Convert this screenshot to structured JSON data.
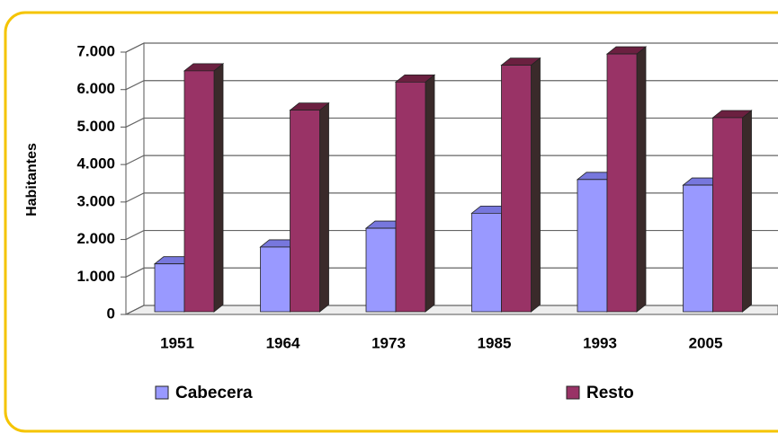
{
  "chart_data": {
    "type": "bar3d",
    "y_label": "Habitantes",
    "categories": [
      "1951",
      "1964",
      "1973",
      "1985",
      "1993",
      "2005"
    ],
    "series": [
      {
        "name": "Cabecera",
        "color": "#9999ff",
        "values": [
          1350,
          1800,
          2300,
          2700,
          3600,
          3450
        ]
      },
      {
        "name": "Resto",
        "color": "#993366",
        "values": [
          6500,
          5450,
          6200,
          6650,
          6950,
          5250
        ]
      }
    ],
    "ylim": [
      0,
      7000
    ],
    "yticks": [
      0,
      {
        "value": 1000,
        "label": "1.000"
      },
      {
        "value": 2000,
        "label": "2.000"
      },
      {
        "value": 3000,
        "label": "3.000"
      },
      {
        "value": 4000,
        "label": "4.000"
      },
      {
        "value": 5000,
        "label": "5.000"
      },
      {
        "value": 6000,
        "label": "6.000"
      },
      {
        "value": 7000,
        "label": "7.000"
      }
    ],
    "grid": true
  }
}
